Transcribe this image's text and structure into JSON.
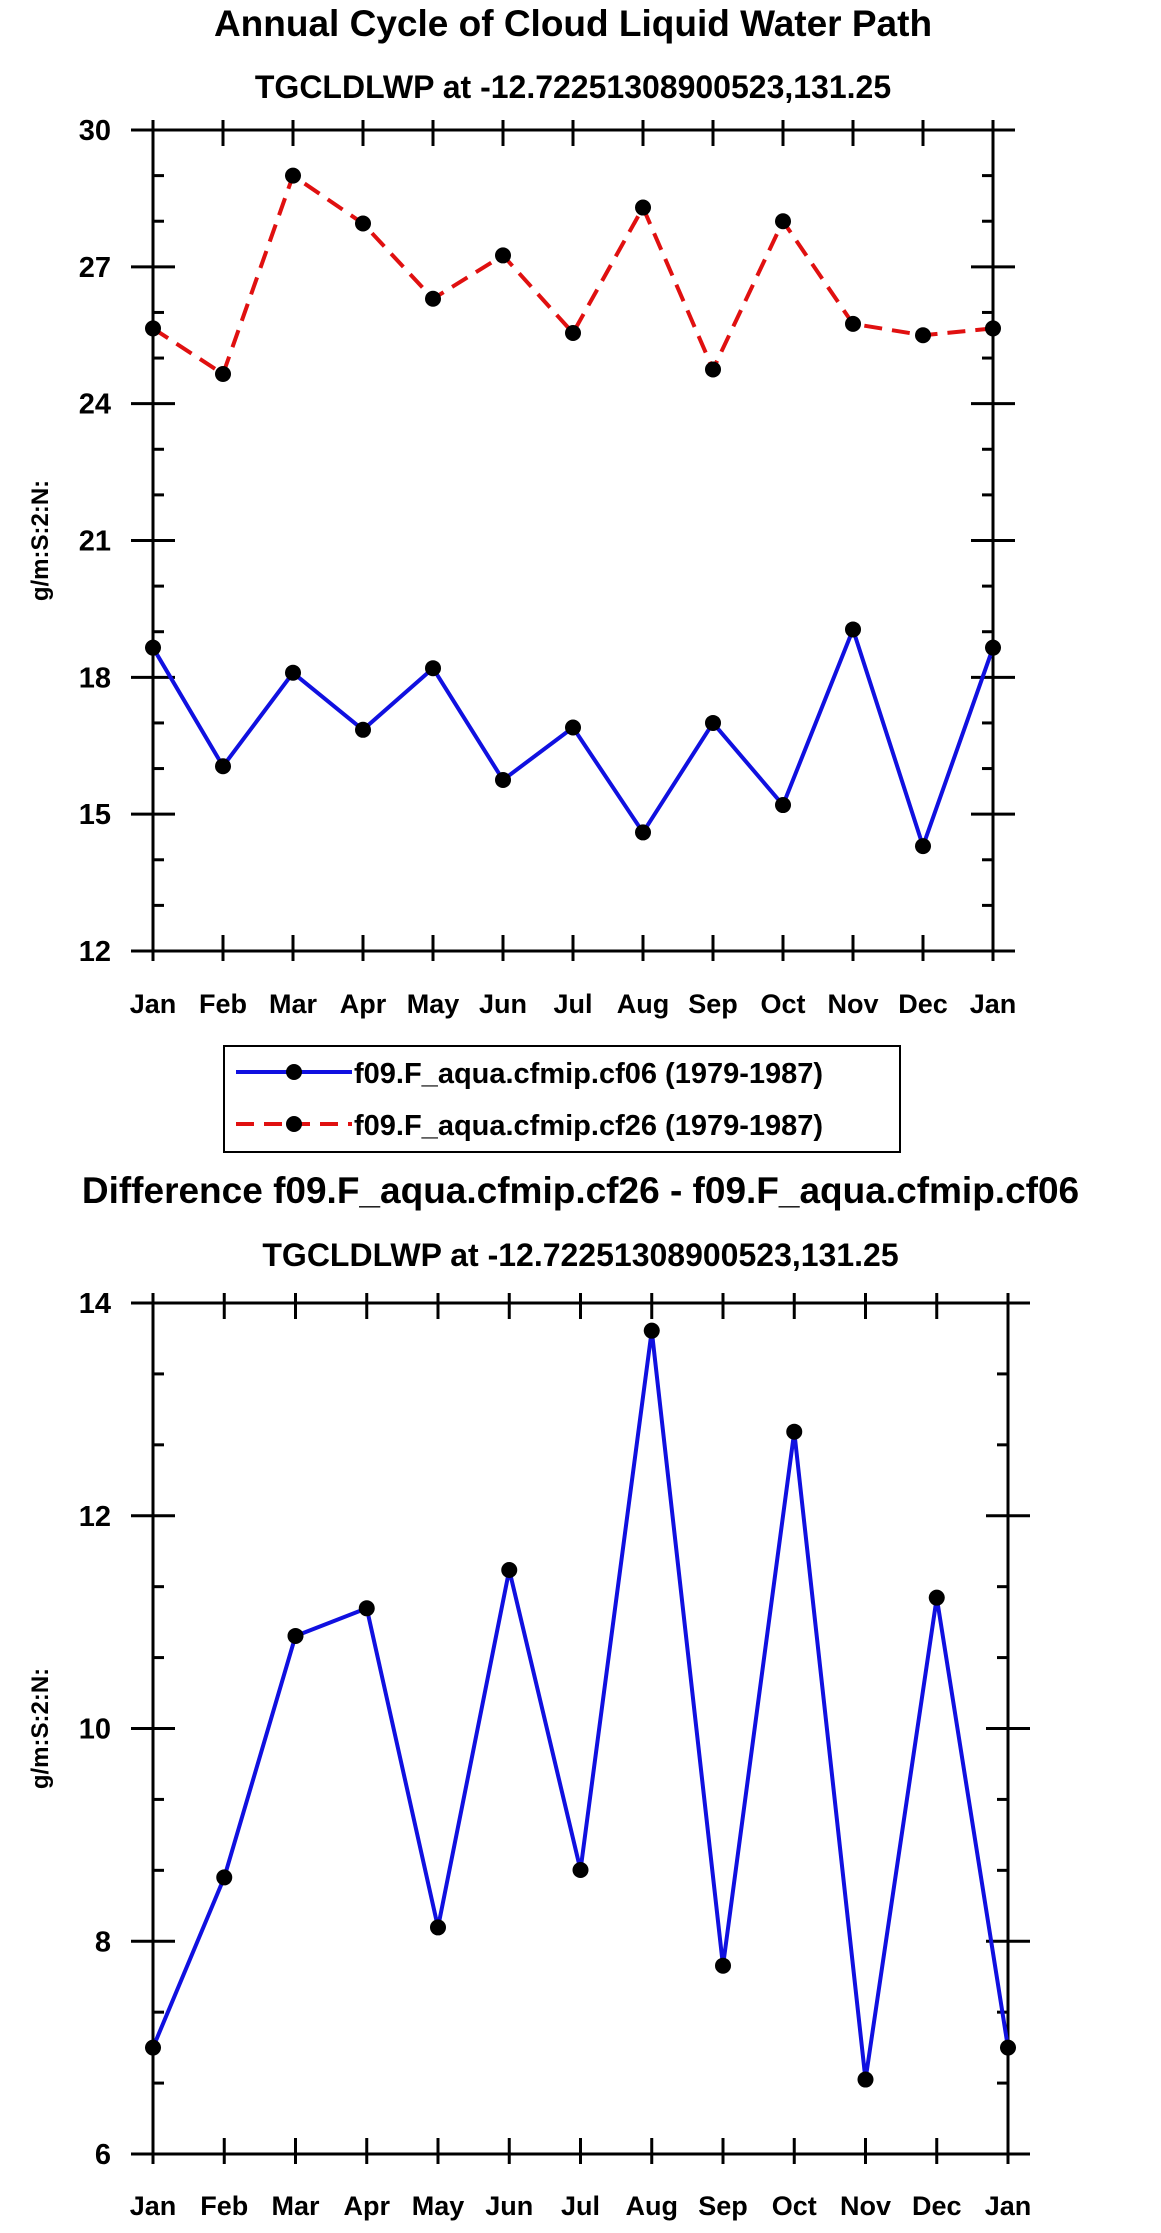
{
  "chart_data": [
    {
      "type": "line",
      "title": "Annual Cycle of Cloud Liquid Water Path",
      "subtitle": "TGCLDLWP at -12.72251308900523,131.25",
      "xlabel": "",
      "ylabel": "g/m:S:2:N:",
      "categories": [
        "Jan",
        "Feb",
        "Mar",
        "Apr",
        "May",
        "Jun",
        "Jul",
        "Aug",
        "Sep",
        "Oct",
        "Nov",
        "Dec",
        "Jan"
      ],
      "ylim": [
        12,
        30
      ],
      "yticks": [
        12,
        15,
        18,
        21,
        24,
        27,
        30
      ],
      "ytick_labels": [
        "12",
        "15",
        "18",
        "21",
        "24",
        "27",
        "30"
      ],
      "grid": false,
      "series": [
        {
          "name": "f09.F_aqua.cfmip.cf06 (1979-1987)",
          "color": "#1010e0",
          "dash": "solid",
          "values": [
            18.65,
            16.05,
            18.1,
            16.85,
            18.2,
            15.75,
            16.9,
            14.6,
            17.0,
            15.2,
            19.05,
            14.3,
            18.65
          ]
        },
        {
          "name": "f09.F_aqua.cfmip.cf26 (1979-1987)",
          "color": "#e01010",
          "dash": "dashed",
          "values": [
            25.65,
            24.65,
            29.0,
            27.95,
            26.3,
            27.25,
            25.55,
            28.3,
            24.75,
            28.0,
            25.75,
            25.5,
            25.65
          ]
        }
      ]
    },
    {
      "type": "line",
      "title": "Difference f09.F_aqua.cfmip.cf26 - f09.F_aqua.cfmip.cf06",
      "subtitle": "TGCLDLWP at -12.72251308900523,131.25",
      "xlabel": "",
      "ylabel": "g/m:S:2:N:",
      "categories": [
        "Jan",
        "Feb",
        "Mar",
        "Apr",
        "May",
        "Jun",
        "Jul",
        "Aug",
        "Sep",
        "Oct",
        "Nov",
        "Dec",
        "Jan"
      ],
      "ylim": [
        6,
        14
      ],
      "yticks": [
        6,
        8,
        10,
        12,
        14
      ],
      "ytick_labels": [
        "6",
        "8",
        "10",
        "12",
        "14"
      ],
      "grid": false,
      "series": [
        {
          "name": "difference",
          "color": "#1010e0",
          "dash": "solid",
          "values": [
            7.0,
            8.6,
            10.87,
            11.13,
            8.13,
            11.49,
            8.67,
            13.74,
            7.77,
            12.79,
            6.7,
            11.23,
            7.0
          ]
        }
      ]
    }
  ]
}
